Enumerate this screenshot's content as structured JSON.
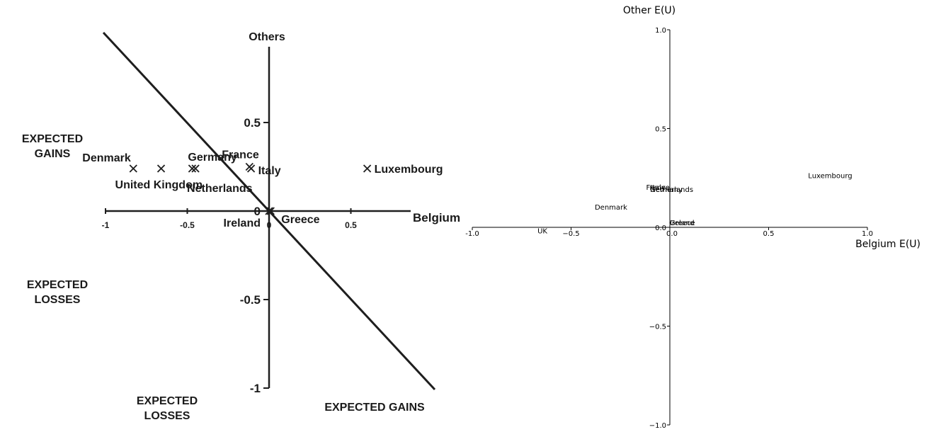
{
  "chart_data": [
    {
      "type": "scatter",
      "title": "",
      "xlabel": "Belgium",
      "ylabel": "Others",
      "xlim": [
        -1,
        1
      ],
      "ylim": [
        -1,
        1
      ],
      "x_ticks": [
        {
          "value": -1,
          "label": "-1"
        },
        {
          "value": -0.5,
          "label": "-0.5"
        },
        {
          "value": 0,
          "label": "0"
        },
        {
          "value": 0.5,
          "label": "0.5"
        }
      ],
      "y_ticks": [
        {
          "value": 0.5,
          "label": "0.5"
        },
        {
          "value": 0,
          "label": "0"
        },
        {
          "value": -0.5,
          "label": "-0.5"
        },
        {
          "value": -1,
          "label": "-1"
        }
      ],
      "points": [
        {
          "label": "Denmark",
          "x": -0.83,
          "y": 0.24
        },
        {
          "label": "United Kingdom",
          "x": -0.66,
          "y": 0.24
        },
        {
          "label": "Germany",
          "x": -0.47,
          "y": 0.24
        },
        {
          "label": "Netherlands",
          "x": -0.45,
          "y": 0.24
        },
        {
          "label": "France",
          "x": -0.12,
          "y": 0.25
        },
        {
          "label": "Italy",
          "x": -0.11,
          "y": 0.24
        },
        {
          "label": "Luxembourg",
          "x": 0.6,
          "y": 0.24
        },
        {
          "label": "Ireland",
          "x": 0,
          "y": 0
        },
        {
          "label": "Greece",
          "x": 0.01,
          "y": 0
        }
      ],
      "line": {
        "from": [
          -1,
          1
        ],
        "to": [
          1,
          -1
        ]
      },
      "region_labels": {
        "upper_left": "EXPECTED\nGAINS",
        "left": "EXPECTED\nLOSSES",
        "lower_left": "EXPECTED\nLOSSES",
        "lower_right": "EXPECTED GAINS"
      },
      "grid": false
    },
    {
      "type": "scatter",
      "title": "",
      "xlabel": "Belgium E(U)",
      "ylabel": "Other E(U)",
      "xlim": [
        -1,
        1
      ],
      "ylim": [
        -1,
        1
      ],
      "x_ticks": [
        {
          "value": -1,
          "label": "-1.0"
        },
        {
          "value": -0.5,
          "label": "−0.5"
        },
        {
          "value": 0,
          "label": "0.0"
        },
        {
          "value": 0.5,
          "label": "0.5"
        },
        {
          "value": 1,
          "label": "1.0"
        }
      ],
      "y_ticks": [
        {
          "value": 1,
          "label": "1.0"
        },
        {
          "value": 0.5,
          "label": "0.5"
        },
        {
          "value": 0,
          "label": "0.0"
        },
        {
          "value": -0.5,
          "label": "−0.5"
        },
        {
          "value": -1,
          "label": "−1.0"
        }
      ],
      "points": [
        {
          "label": "Luxembourg",
          "x": 0.7,
          "y": 0.25
        },
        {
          "label": "France",
          "x": -0.12,
          "y": 0.19
        },
        {
          "label": "Italy",
          "x": -0.1,
          "y": 0.19
        },
        {
          "label": "Germany",
          "x": -0.1,
          "y": 0.18
        },
        {
          "label": "Netherlands",
          "x": -0.1,
          "y": 0.18
        },
        {
          "label": "Denmark",
          "x": -0.38,
          "y": 0.09
        },
        {
          "label": "Greece",
          "x": 0,
          "y": 0.01
        },
        {
          "label": "Ireland",
          "x": 0,
          "y": 0.01
        },
        {
          "label": "UK",
          "x": -0.67,
          "y": -0.03
        }
      ],
      "grid": false,
      "spines": "centered"
    }
  ]
}
